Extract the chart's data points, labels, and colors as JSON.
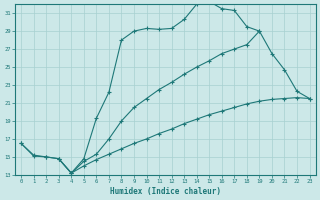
{
  "bg_color": "#cce8e8",
  "grid_color": "#a8d0d0",
  "line_color": "#1e7878",
  "xlabel": "Humidex (Indice chaleur)",
  "xlim": [
    -0.5,
    23.5
  ],
  "ylim": [
    13,
    32
  ],
  "yticks": [
    13,
    15,
    17,
    19,
    21,
    23,
    25,
    27,
    29,
    31
  ],
  "xticks": [
    0,
    1,
    2,
    3,
    4,
    5,
    6,
    7,
    8,
    9,
    10,
    11,
    12,
    13,
    14,
    15,
    16,
    17,
    18,
    19,
    20,
    21,
    22,
    23
  ],
  "curves": [
    {
      "x": [
        0,
        1,
        2,
        3,
        4,
        5,
        6,
        7,
        8,
        9,
        10,
        11,
        12,
        13,
        14,
        15,
        16,
        17,
        18,
        19
      ],
      "y": [
        16.5,
        15.1,
        15.0,
        14.8,
        13.2,
        14.8,
        19.3,
        22.2,
        28.0,
        29.0,
        29.3,
        29.2,
        29.3,
        30.3,
        32.0,
        32.3,
        31.5,
        31.3,
        29.5,
        29.0
      ]
    },
    {
      "x": [
        3,
        4,
        5,
        6,
        7,
        8,
        9,
        10,
        11,
        12,
        13,
        14,
        15,
        16,
        17,
        18,
        19,
        20,
        21,
        22,
        23
      ],
      "y": [
        14.8,
        13.2,
        14.5,
        15.3,
        17.0,
        19.0,
        20.5,
        21.5,
        22.5,
        23.3,
        24.2,
        25.0,
        25.7,
        26.5,
        27.0,
        27.5,
        29.0,
        26.5,
        24.7,
        22.3,
        21.5
      ]
    },
    {
      "x": [
        0,
        1,
        2,
        3,
        4,
        5,
        6,
        7,
        8,
        9,
        10,
        11,
        12,
        13,
        14,
        15,
        16,
        17,
        18,
        19,
        20,
        21,
        22,
        23
      ],
      "y": [
        16.5,
        15.2,
        15.0,
        14.8,
        13.2,
        14.0,
        14.7,
        15.3,
        15.9,
        16.5,
        17.0,
        17.6,
        18.1,
        18.7,
        19.2,
        19.7,
        20.1,
        20.5,
        20.9,
        21.2,
        21.4,
        21.5,
        21.6,
        21.5
      ]
    }
  ]
}
